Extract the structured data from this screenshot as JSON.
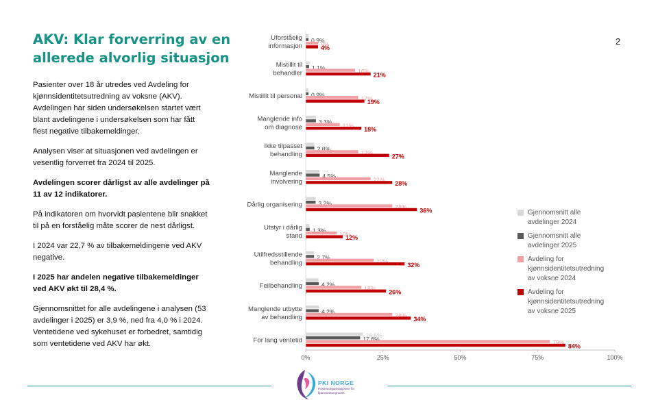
{
  "slide": {
    "title": "AKV: Klar forverring av en allerede alvorlig situasjon",
    "page_number": "2",
    "paragraphs": [
      {
        "text": "Pasienter over 18 år utredes ved Avdeling for kjønnsidentitetsutredning av voksne (AKV). Avdelingen har siden undersøkelsen startet vært blant avdelingene i undersøkelsen som har fått flest negative tilbakemeldinger.",
        "bold": false
      },
      {
        "text": "Analysen viser at situasjonen ved avdelingen er vesentlig forverret fra 2024 til 2025.",
        "bold": false
      },
      {
        "text": "Avdelingen scorer dårligst av alle avdelinger på 11 av 12 indikatorer.",
        "bold": true
      },
      {
        "text": "På indikatoren om hvorvidt pasientene blir snakket til på en forståelig måte scorer de nest dårligst.",
        "bold": false
      },
      {
        "text": "I 2024 var 22,7 % av tilbakemeldingene ved AKV negative.",
        "bold": false
      },
      {
        "text": "I 2025 har andelen negative tilbakemeldinger ved AKV økt til 28,4 %.",
        "bold": true
      },
      {
        "text": "Gjennomsnittet for alle avdelingene i analysen (53 avdelinger i 2025) er 3,9 %, ned fra 4,0 % i 2024. Ventetidene ved sykehuset er forbedret, samtidig som ventetidene ved AKV har økt.",
        "bold": false
      }
    ]
  },
  "logo": {
    "name": "PKI NORGE",
    "subtitle": "Pasientorganisasjonen for kjønnsinkongruens"
  },
  "chart_data": {
    "type": "bar",
    "orientation": "horizontal",
    "categories": [
      "Uforståelig informasjon",
      "Mistillit til behandler",
      "Mistillit til personal",
      "Manglende info om diagnose",
      "Ikke tilpasset behandling",
      "Manglende involvering",
      "Dårlig organisering",
      "Utstyr i dårlig stand",
      "Utilfredsstillende behandling",
      "Feilbehandling",
      "Manglende utbytte av behandling",
      "For lang ventetid"
    ],
    "series": [
      {
        "name": "Gjennomsnitt alle avdelinger 2024",
        "color": "#d9d9d9",
        "label_color": "#c8c8c8",
        "values": [
          0.9,
          1.2,
          0.9,
          3.3,
          2.8,
          4.5,
          3.2,
          1.2,
          2.7,
          4.1,
          4.2,
          18.5
        ],
        "labels": [
          "",
          "",
          "",
          "",
          "",
          "",
          "",
          "",
          "",
          "",
          "",
          "18.5%"
        ]
      },
      {
        "name": "Gjennomsnitt alle avdelinger 2025",
        "color": "#595959",
        "label_color": "#444444",
        "values": [
          0.9,
          1.1,
          0.9,
          3.3,
          2.8,
          4.5,
          3.2,
          1.3,
          2.7,
          4.2,
          4.2,
          17.6
        ],
        "labels": [
          "0.9%",
          "1.1%",
          "0.9%",
          "3.3%",
          "2.8%",
          "4.5%",
          "3.2%",
          "1.3%",
          "2.7%",
          "4.2%",
          "4.2%",
          "17.6%"
        ]
      },
      {
        "name": "Avdeling for kjønnsidentitetsutredning av voksne 2024",
        "color": "#f1a1a6",
        "label_color": "#f0a0a5",
        "values": [
          4,
          16,
          17,
          11,
          17,
          21,
          28,
          10,
          22,
          18,
          28,
          79
        ],
        "labels": [
          "4%",
          "16%",
          "17%",
          "11%",
          "17%",
          "21%",
          "28%",
          "10%",
          "22%",
          "18%",
          "28%",
          "79%"
        ]
      },
      {
        "name": "Avdeling for kjønnsidentitetsutredning av voksne 2025",
        "color": "#c00000",
        "label_color": "#c00000",
        "values": [
          4,
          21,
          19,
          18,
          27,
          28,
          36,
          12,
          32,
          26,
          34,
          84
        ],
        "labels": [
          "4%",
          "21%",
          "19%",
          "18%",
          "27%",
          "28%",
          "36%",
          "12%",
          "32%",
          "26%",
          "34%",
          "84%"
        ]
      }
    ],
    "xlim": [
      0,
      100
    ],
    "x_ticks": [
      "0%",
      "25%",
      "50%",
      "75%",
      "100%"
    ],
    "grid": false,
    "legend_position": "right",
    "legend": [
      {
        "label": "Gjennomsnitt alle\navdelinger 2024",
        "color": "#d9d9d9"
      },
      {
        "label": "Gjennomsnitt alle\navdelinger 2025",
        "color": "#595959"
      },
      {
        "label": "Avdeling for\nkjønnsidentitetsutredning\nav voksne 2024",
        "color": "#f1a1a6"
      },
      {
        "label": "Avdeling for\nkjønnsidentitetsutredning\nav voksne 2025",
        "color": "#c00000"
      }
    ],
    "category_label_lines": [
      [
        "Uforståelig",
        "informasjon"
      ],
      [
        "Mistillit til",
        "behandler"
      ],
      [
        "Mistillit til personal"
      ],
      [
        "Manglende info",
        "om diagnose"
      ],
      [
        "Ikke tilpasset",
        "behandling"
      ],
      [
        "Manglende",
        "involvering"
      ],
      [
        "Dårlig organisering"
      ],
      [
        "Utstyr i dårlig",
        "stand"
      ],
      [
        "Utilfredsstillende",
        "behandling"
      ],
      [
        "Feilbehandling"
      ],
      [
        "Manglende utbytte",
        "av behandling"
      ],
      [
        "For lang ventetid"
      ]
    ]
  }
}
